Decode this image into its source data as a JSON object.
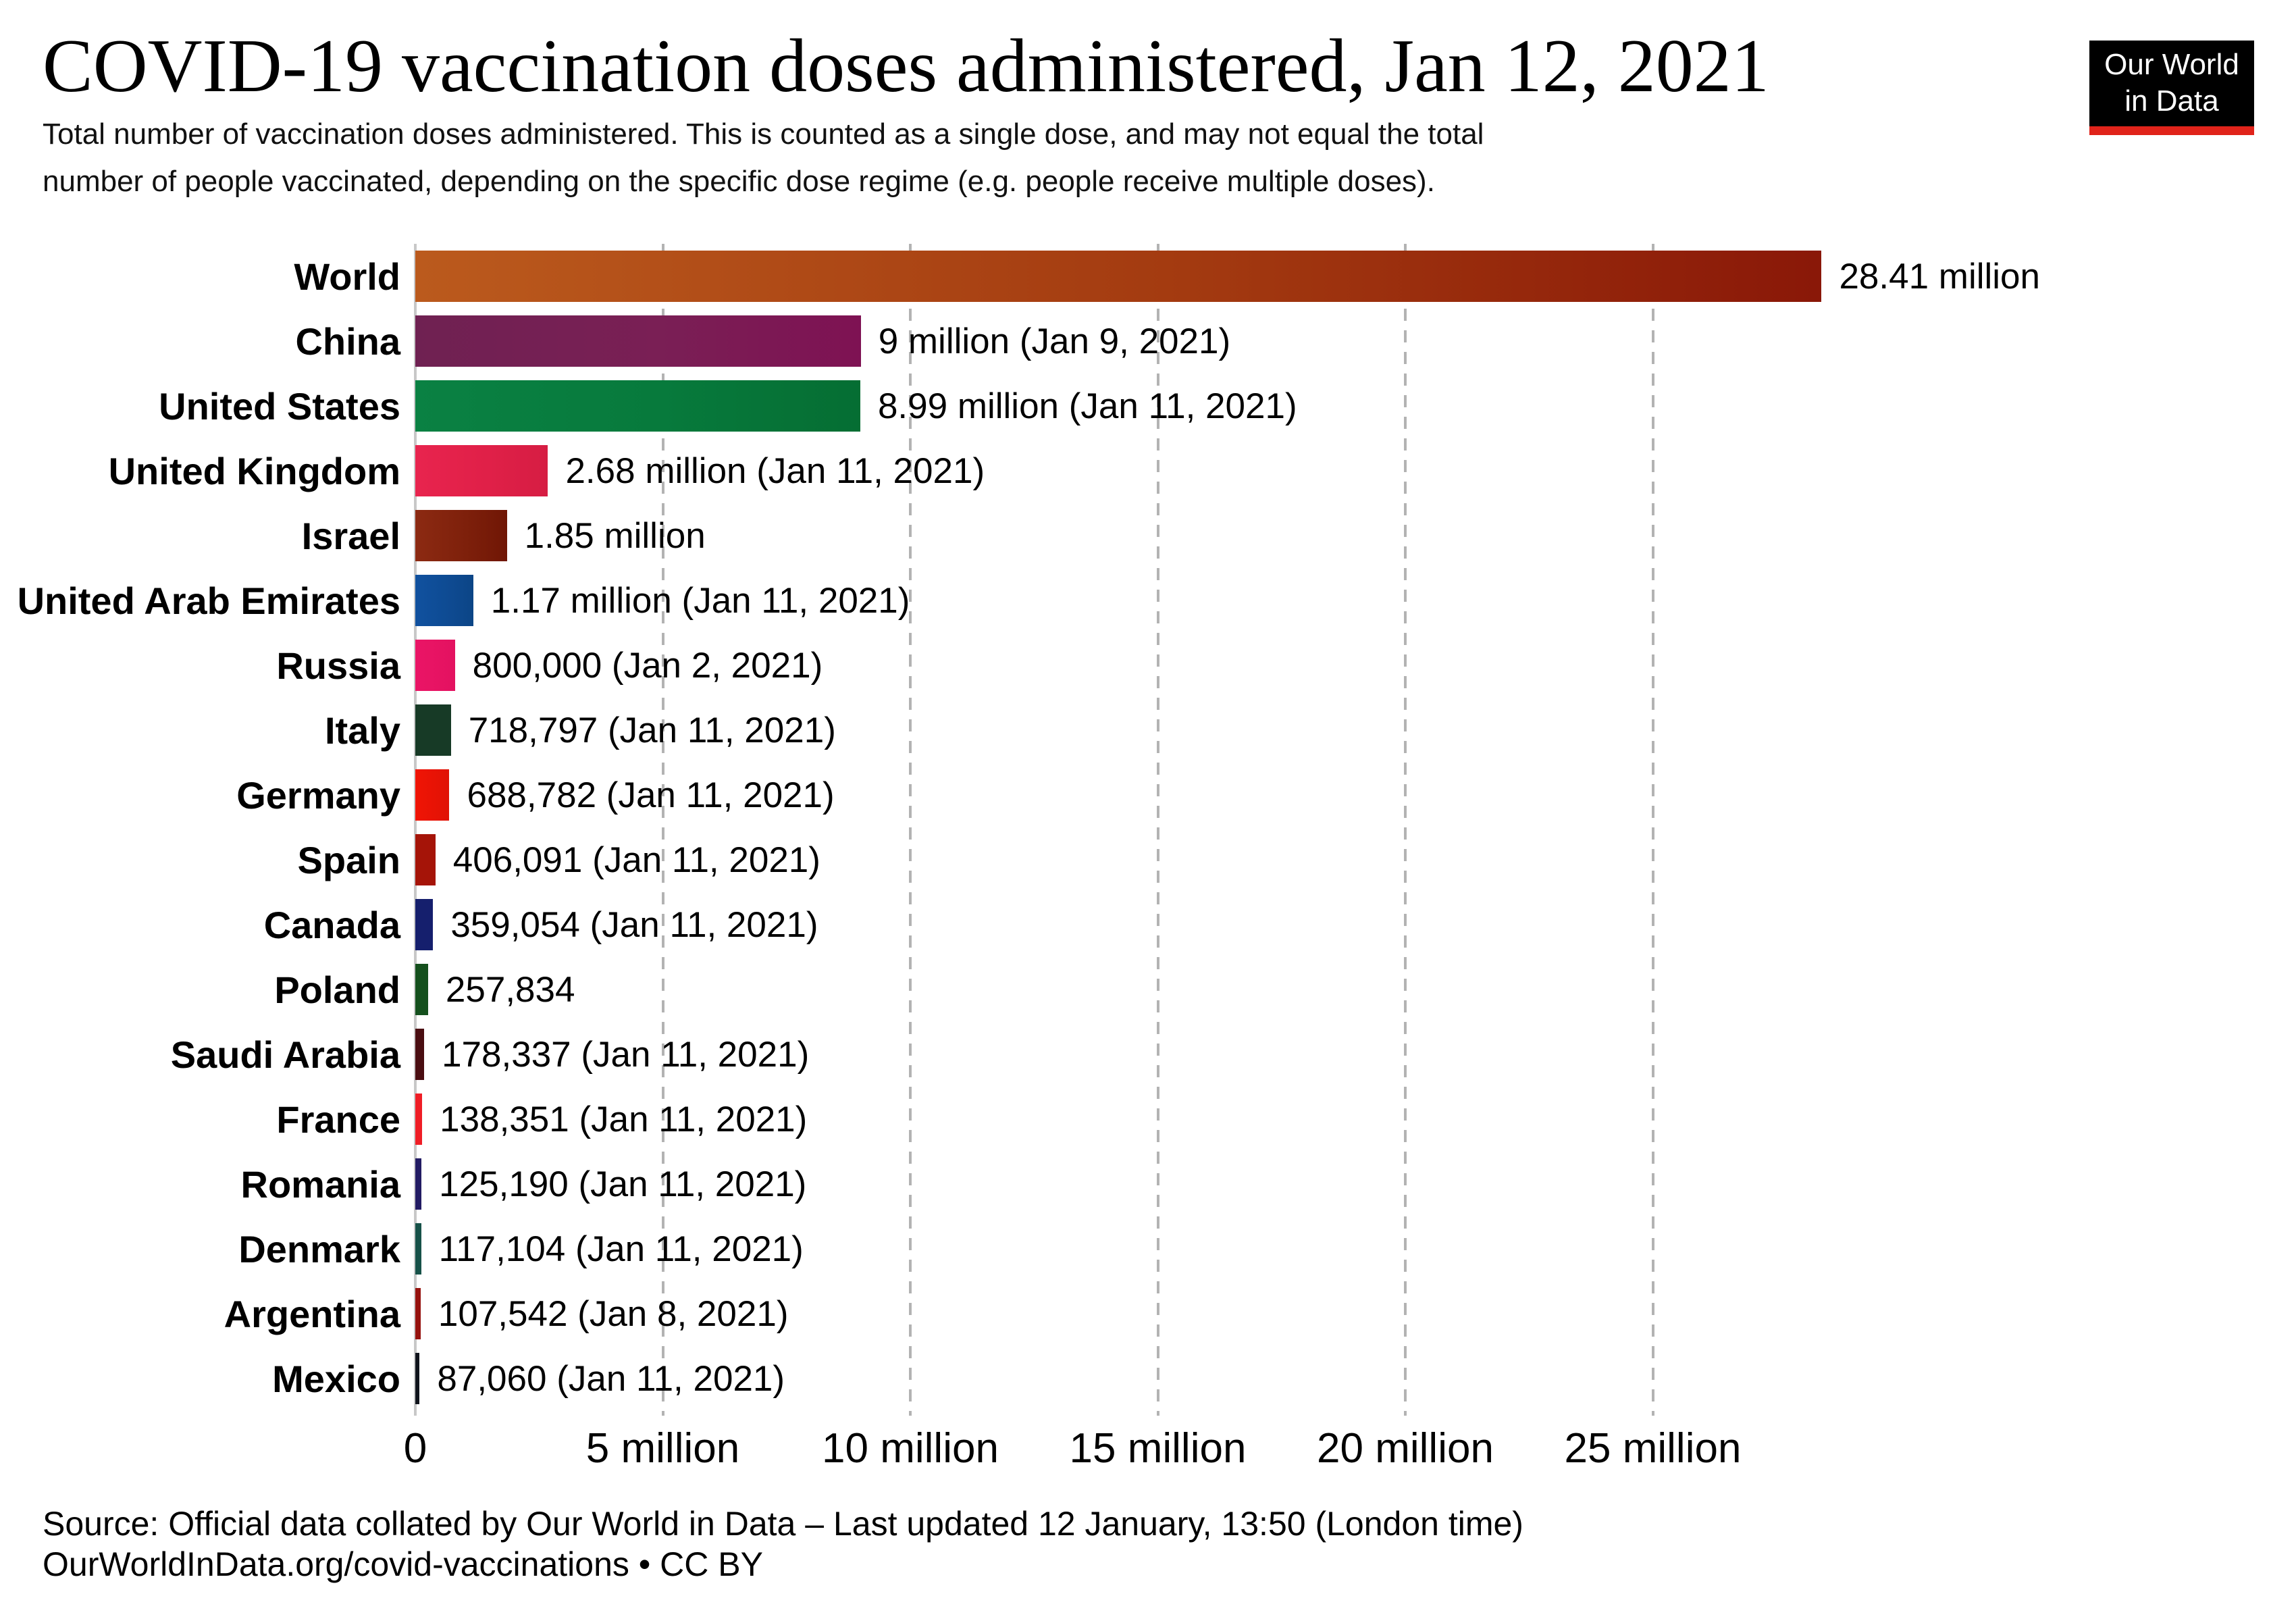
{
  "header": {
    "title": "COVID-19 vaccination doses administered, Jan 12, 2021",
    "subtitle_line1": "Total number of vaccination doses administered. This is counted as a single dose, and may not equal the total",
    "subtitle_line2": "number of people vaccinated, depending on the specific dose regime (e.g. people receive multiple doses).",
    "logo": {
      "line1": "Our World",
      "line2": "in Data",
      "bg": "#000000",
      "text_color": "#ffffff",
      "accent": "#e0231a"
    }
  },
  "chart_data": {
    "type": "bar",
    "orientation": "horizontal",
    "title": "COVID-19 vaccination doses administered, Jan 12, 2021",
    "xlabel": "",
    "ylabel": "",
    "xlim": [
      0,
      28410000
    ],
    "grid": true,
    "gridline_color": "#b3b3b3",
    "xticks": [
      {
        "value": 0,
        "label": "0"
      },
      {
        "value": 5000000,
        "label": "5 million"
      },
      {
        "value": 10000000,
        "label": "10 million"
      },
      {
        "value": 15000000,
        "label": "15 million"
      },
      {
        "value": 20000000,
        "label": "20 million"
      },
      {
        "value": 25000000,
        "label": "25 million"
      }
    ],
    "bars": [
      {
        "category": "World",
        "value": 28410000,
        "label": "28.41 million",
        "color_start": "#bb5a1d",
        "color_mid": "#a33a10",
        "color_end": "#8a1808"
      },
      {
        "category": "China",
        "value": 9000000,
        "label": "9 million (Jan 9, 2021)",
        "color_start": "#6f2152",
        "color_mid": "#7a1f55",
        "color_end": "#7e1253"
      },
      {
        "category": "United States",
        "value": 8990000,
        "label": "8.99 million (Jan 11, 2021)",
        "color_start": "#0a8143",
        "color_mid": "#077a3c",
        "color_end": "#056e33"
      },
      {
        "category": "United Kingdom",
        "value": 2680000,
        "label": "2.68 million (Jan 11, 2021)",
        "color_start": "#e8244e",
        "color_mid": "#e02048",
        "color_end": "#d61d43"
      },
      {
        "category": "Israel",
        "value": 1850000,
        "label": "1.85 million",
        "color_start": "#8c2a12",
        "color_mid": "#7e200b",
        "color_end": "#701605"
      },
      {
        "category": "United Arab Emirates",
        "value": 1170000,
        "label": "1.17 million (Jan 11, 2021)",
        "color_start": "#10519f",
        "color_mid": "#0e4b93",
        "color_end": "#0c4586"
      },
      {
        "category": "Russia",
        "value": 800000,
        "label": "800,000 (Jan 2, 2021)",
        "color_start": "#ea1566",
        "color_mid": "#e71363",
        "color_end": "#e31260"
      },
      {
        "category": "Italy",
        "value": 718797,
        "label": "718,797 (Jan 11, 2021)",
        "color_start": "#173a26",
        "color_mid": "#173a26",
        "color_end": "#173a26"
      },
      {
        "category": "Germany",
        "value": 688782,
        "label": "688,782 (Jan 11, 2021)",
        "color_start": "#f01405",
        "color_mid": "#e81305",
        "color_end": "#e01205"
      },
      {
        "category": "Spain",
        "value": 406091,
        "label": "406,091 (Jan 11, 2021)",
        "color_start": "#a51408",
        "color_mid": "#a51408",
        "color_end": "#a51408"
      },
      {
        "category": "Canada",
        "value": 359054,
        "label": "359,054 (Jan 11, 2021)",
        "color_start": "#151f6d",
        "color_mid": "#151f6d",
        "color_end": "#151f6d"
      },
      {
        "category": "Poland",
        "value": 257834,
        "label": "257,834",
        "color_start": "#14501d",
        "color_mid": "#14501d",
        "color_end": "#14501d"
      },
      {
        "category": "Saudi Arabia",
        "value": 178337,
        "label": "178,337 (Jan 11, 2021)",
        "color_start": "#4a0d11",
        "color_mid": "#4a0d11",
        "color_end": "#4a0d11"
      },
      {
        "category": "France",
        "value": 138351,
        "label": "138,351 (Jan 11, 2021)",
        "color_start": "#ef1e26",
        "color_mid": "#ef1e26",
        "color_end": "#ef1e26"
      },
      {
        "category": "Romania",
        "value": 125190,
        "label": "125,190 (Jan 11, 2021)",
        "color_start": "#221b63",
        "color_mid": "#221b63",
        "color_end": "#221b63"
      },
      {
        "category": "Denmark",
        "value": 117104,
        "label": "117,104 (Jan 11, 2021)",
        "color_start": "#175249",
        "color_mid": "#175249",
        "color_end": "#175249"
      },
      {
        "category": "Argentina",
        "value": 107542,
        "label": "107,542 (Jan 8, 2021)",
        "color_start": "#96120e",
        "color_mid": "#96120e",
        "color_end": "#96120e"
      },
      {
        "category": "Mexico",
        "value": 87060,
        "label": "87,060 (Jan 11, 2021)",
        "color_start": "#10141c",
        "color_mid": "#10141c",
        "color_end": "#10141c"
      }
    ]
  },
  "footer": {
    "source": "Source: Official data collated by Our World in Data – Last updated 12 January, 13:50 (London time)",
    "link": "OurWorldInData.org/covid-vaccinations • CC BY"
  }
}
